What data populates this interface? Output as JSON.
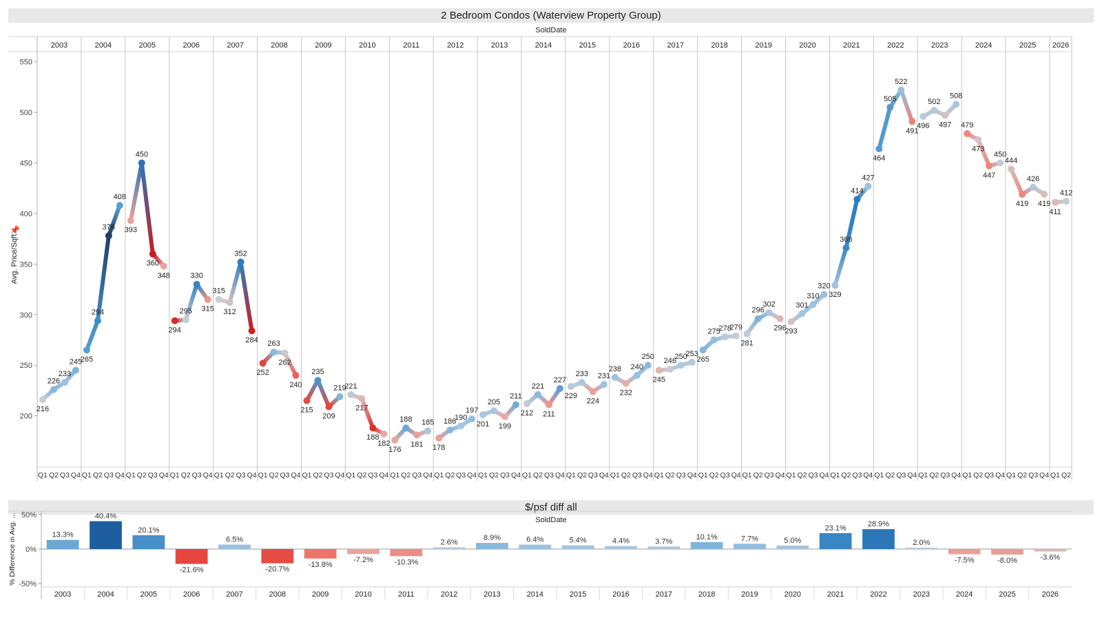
{
  "line_chart": {
    "title": "2 Bedroom Condos (Waterview Property Group)",
    "column_field_label": "SoldDate",
    "quarter_labels": [
      "Q1",
      "Q2",
      "Q3",
      "Q4"
    ],
    "pin_icon": "pin-icon"
  },
  "bar_chart": {
    "title": "$/psf diff all",
    "column_field_label": "SoldDate"
  },
  "chart_data": [
    {
      "type": "line",
      "title": "2 Bedroom Condos (Waterview Property Group)",
      "xlabel": "SoldDate",
      "ylabel": "Avg. Price/Sqft",
      "ylim": [
        150,
        560
      ],
      "yticks": [
        200,
        250,
        300,
        350,
        400,
        450,
        500,
        550
      ],
      "grid": false,
      "color_scale": {
        "high": "#1f3a5f",
        "mid": "#c8cdd3",
        "low": "#d62728"
      },
      "years": [
        {
          "year": "2003",
          "values": [
            216,
            226,
            233,
            245
          ]
        },
        {
          "year": "2004",
          "values": [
            265,
            294,
            378,
            408
          ]
        },
        {
          "year": "2005",
          "values": [
            393,
            450,
            360,
            348
          ]
        },
        {
          "year": "2006",
          "values": [
            294,
            295,
            330,
            315
          ]
        },
        {
          "year": "2007",
          "values": [
            315,
            312,
            352,
            284
          ]
        },
        {
          "year": "2008",
          "values": [
            252,
            263,
            262,
            240
          ]
        },
        {
          "year": "2009",
          "values": [
            215,
            235,
            209,
            219
          ]
        },
        {
          "year": "2010",
          "values": [
            221,
            217,
            188,
            182
          ]
        },
        {
          "year": "2011",
          "values": [
            176,
            188,
            181,
            185
          ]
        },
        {
          "year": "2012",
          "values": [
            178,
            186,
            190,
            197
          ]
        },
        {
          "year": "2013",
          "values": [
            201,
            205,
            199,
            211
          ]
        },
        {
          "year": "2014",
          "values": [
            212,
            221,
            211,
            227
          ]
        },
        {
          "year": "2015",
          "values": [
            229,
            233,
            224,
            231
          ]
        },
        {
          "year": "2016",
          "values": [
            238,
            232,
            240,
            250
          ]
        },
        {
          "year": "2017",
          "values": [
            245,
            246,
            250,
            253
          ]
        },
        {
          "year": "2018",
          "values": [
            265,
            275,
            278,
            279
          ]
        },
        {
          "year": "2019",
          "values": [
            281,
            296,
            302,
            296
          ]
        },
        {
          "year": "2020",
          "values": [
            293,
            301,
            310,
            320
          ]
        },
        {
          "year": "2021",
          "values": [
            329,
            366,
            414,
            427
          ]
        },
        {
          "year": "2022",
          "values": [
            464,
            505,
            522,
            491
          ]
        },
        {
          "year": "2023",
          "values": [
            496,
            502,
            497,
            508
          ]
        },
        {
          "year": "2024",
          "values": [
            479,
            473,
            447,
            450
          ]
        },
        {
          "year": "2025",
          "values": [
            444,
            419,
            426,
            419
          ]
        },
        {
          "year": "2026",
          "values": [
            411,
            412
          ]
        }
      ]
    },
    {
      "type": "bar",
      "title": "$/psf diff all",
      "xlabel": "SoldDate",
      "ylabel": "% Difference in Avg. ...",
      "ylim": [
        -55,
        55
      ],
      "yticks": [
        {
          "value": 50,
          "label": "50%"
        },
        {
          "value": 0,
          "label": "0%"
        },
        {
          "value": -50,
          "label": "-50%"
        }
      ],
      "categories": [
        "2003",
        "2004",
        "2005",
        "2006",
        "2007",
        "2008",
        "2009",
        "2010",
        "2011",
        "2012",
        "2013",
        "2014",
        "2015",
        "2016",
        "2017",
        "2018",
        "2019",
        "2020",
        "2021",
        "2022",
        "2023",
        "2024",
        "2025",
        "2026"
      ],
      "values": [
        13.3,
        40.4,
        20.1,
        -21.6,
        6.5,
        -20.7,
        -13.8,
        -7.2,
        -10.3,
        2.6,
        8.9,
        6.4,
        5.4,
        4.4,
        3.7,
        10.1,
        7.7,
        5.0,
        23.1,
        28.9,
        2.0,
        -7.5,
        -8.0,
        -3.6
      ],
      "labels": [
        "13.3%",
        "40.4%",
        "20.1%",
        "-21.6%",
        "6.5%",
        "-20.7%",
        "-13.8%",
        "-7.2%",
        "-10.3%",
        "2.6%",
        "8.9%",
        "6.4%",
        "5.4%",
        "4.4%",
        "3.7%",
        "10.1%",
        "7.7%",
        "5.0%",
        "23.1%",
        "28.9%",
        "2.0%",
        "-7.5%",
        "-8.0%",
        "-3.6%"
      ]
    }
  ]
}
